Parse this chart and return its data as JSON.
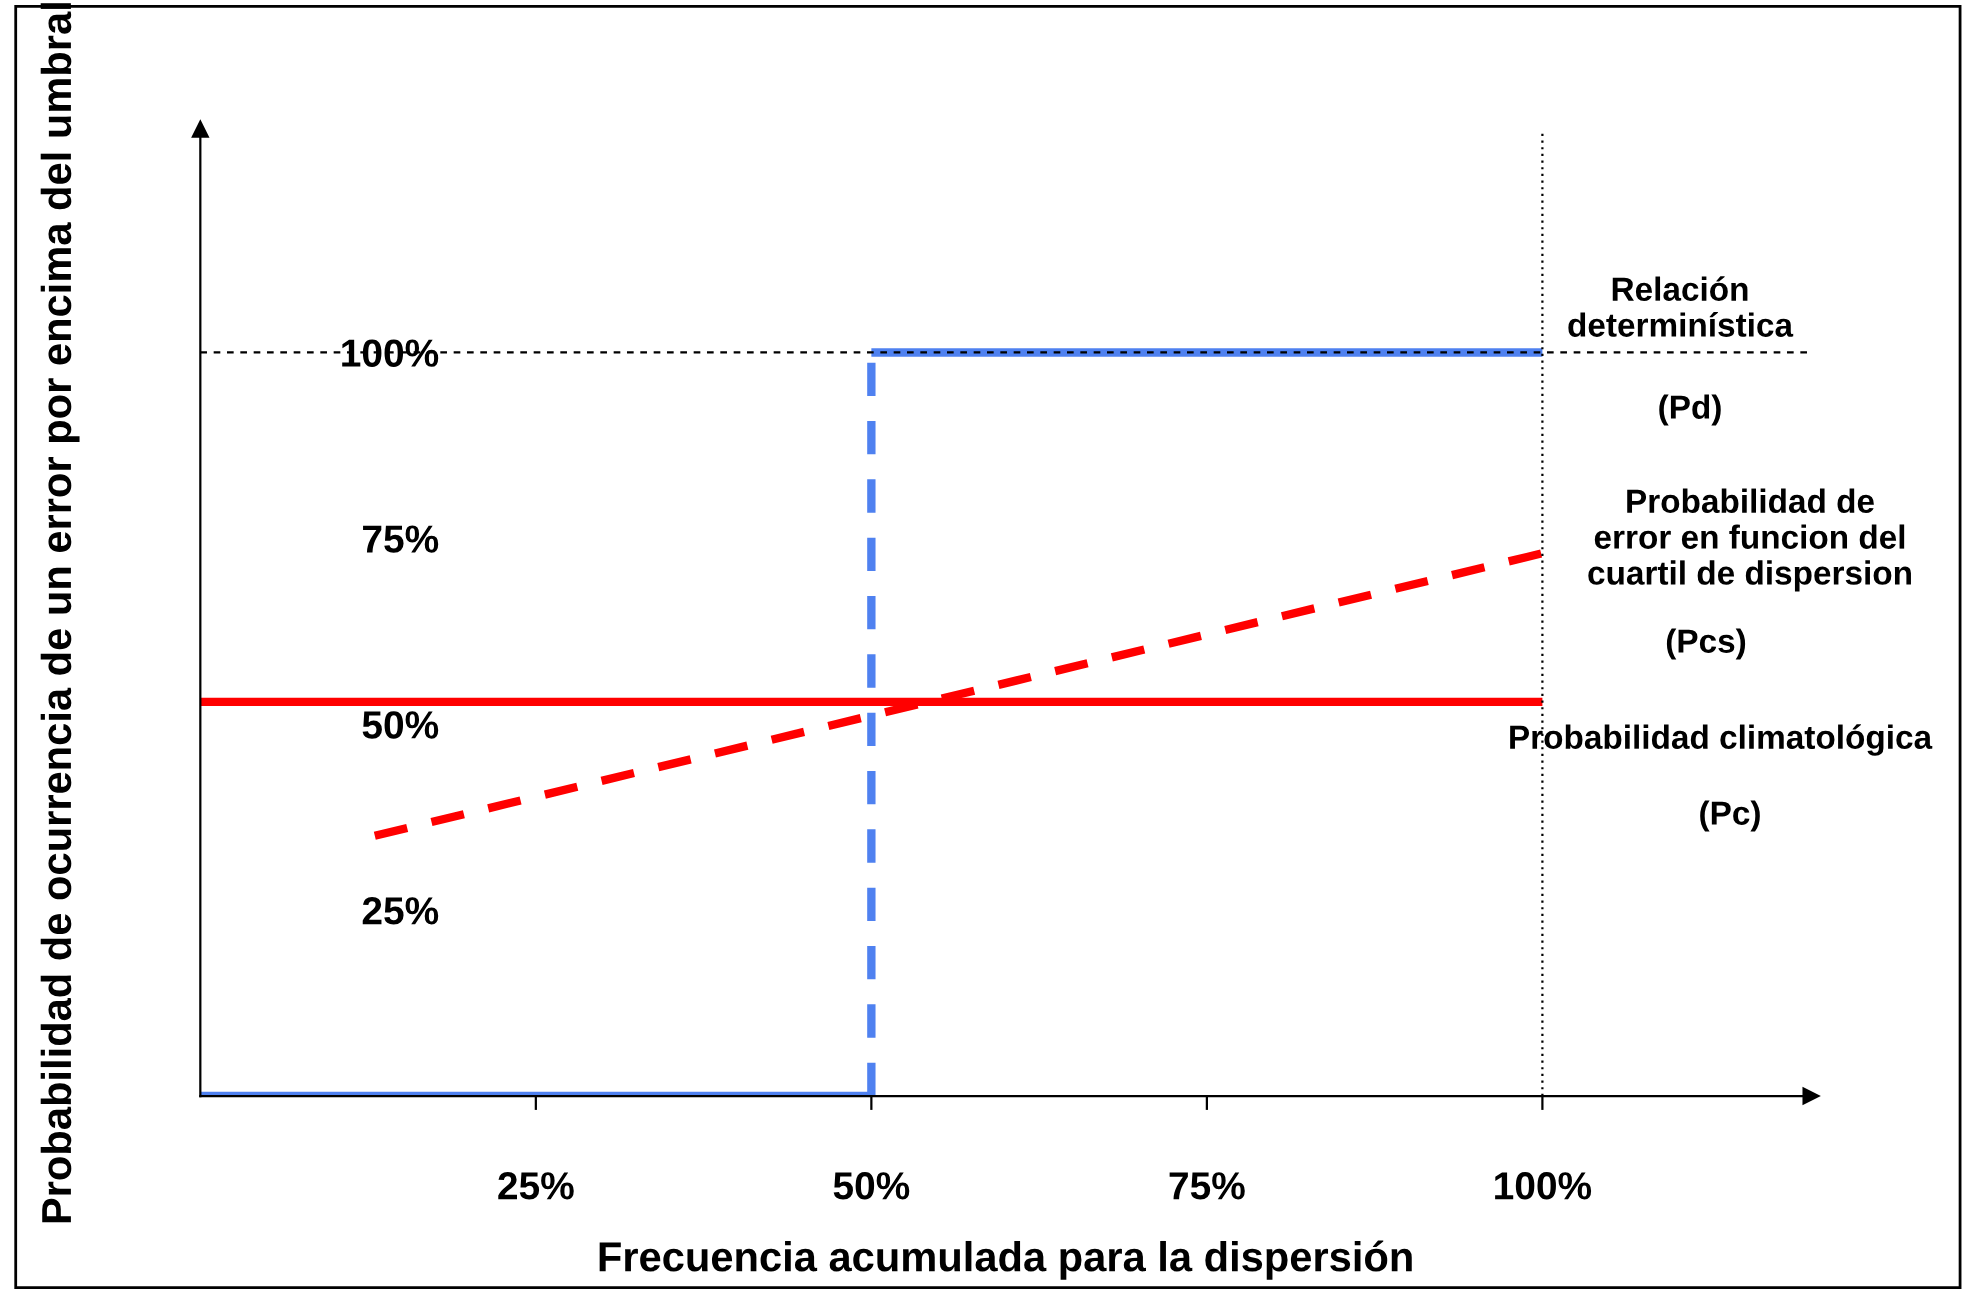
{
  "chart_data": {
    "type": "line",
    "xlabel": "Frecuencia acumulada para la dispersión",
    "ylabel": "Probabilidad de ocurrencia de un error por encima del umbral",
    "xlim": [
      0,
      120
    ],
    "ylim": [
      0,
      130
    ],
    "xticks": [
      {
        "value": 25,
        "label": "25%"
      },
      {
        "value": 50,
        "label": "50%"
      },
      {
        "value": 75,
        "label": "75%"
      },
      {
        "value": 100,
        "label": "100%"
      }
    ],
    "yticks": [
      {
        "value": 25,
        "label": "25%"
      },
      {
        "value": 50,
        "label": "50%"
      },
      {
        "value": 75,
        "label": "75%"
      },
      {
        "value": 100,
        "label": "100%"
      }
    ],
    "series": [
      {
        "x": [
          0,
          50
        ],
        "values": [
          0,
          0
        ],
        "color": "#4f81f0",
        "line_style": "solid"
      },
      {
        "x": [
          50,
          50
        ],
        "values": [
          0,
          100
        ],
        "color": "#4f81f0",
        "line_style": "dashed"
      },
      {
        "x": [
          50,
          100
        ],
        "values": [
          100,
          100
        ],
        "color": "#4f81f0",
        "line_style": "solid"
      },
      {
        "x": [
          0,
          100
        ],
        "values": [
          53,
          53
        ],
        "color": "#ff0000",
        "line_style": "solid"
      },
      {
        "x": [
          13,
          100
        ],
        "values": [
          35,
          73
        ],
        "color": "#ff0000",
        "line_style": "dashed"
      }
    ],
    "ref_lines": [
      {
        "axis": "y",
        "value": 100,
        "color": "#000000",
        "line_style": "dashed"
      },
      {
        "axis": "x",
        "value": 100,
        "color": "#000000",
        "line_style": "dotted"
      }
    ],
    "annotations": [
      "Relación\ndeterminística",
      "(Pd)",
      "Probabilidad de\nerror en funcion del\ncuartil de dispersion",
      "(Pcs)",
      "Probabilidad climatológica",
      "(Pc)"
    ],
    "grid": false,
    "legend": false,
    "marker": "none"
  }
}
